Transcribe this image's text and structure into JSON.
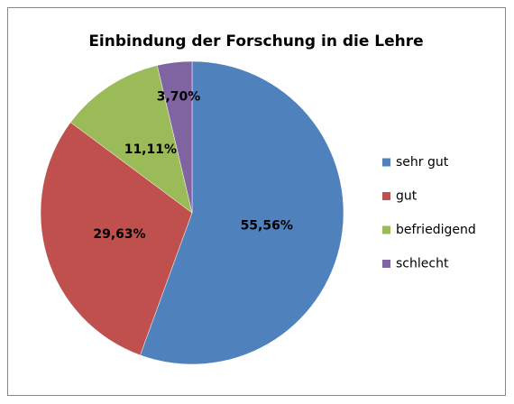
{
  "chart_data": {
    "type": "pie",
    "title": "Einbindung der Forschung in die Lehre",
    "categories": [
      "sehr gut",
      "gut",
      "befriedigend",
      "schlecht"
    ],
    "values": [
      55.56,
      29.63,
      11.11,
      3.7
    ],
    "value_labels": [
      "55,56%",
      "29,63%",
      "11,11%",
      "3,70%"
    ],
    "colors": [
      "#4f81bd",
      "#c0504d",
      "#9bbb59",
      "#8064a2"
    ],
    "legend": "right"
  }
}
